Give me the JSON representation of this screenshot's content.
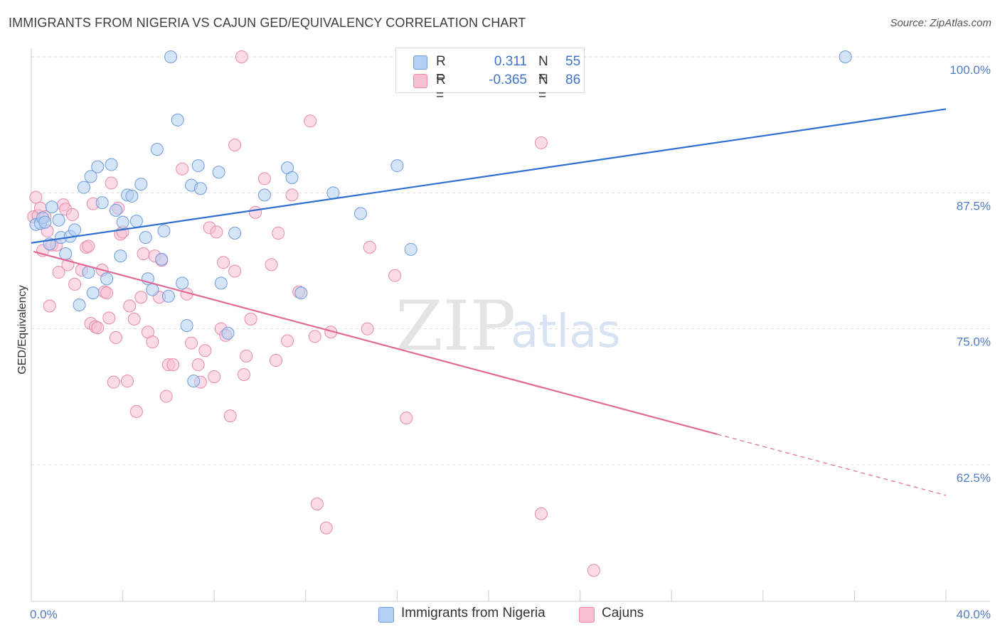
{
  "header": {
    "title": "IMMIGRANTS FROM NIGERIA VS CAJUN GED/EQUIVALENCY CORRELATION CHART",
    "source": "Source: ZipAtlas.com"
  },
  "legend": {
    "series1": {
      "r_label": "R =",
      "r_value": "0.311",
      "n_label": "N =",
      "n_value": "55"
    },
    "series2": {
      "r_label": "R =",
      "r_value": "-0.365",
      "n_label": "N =",
      "n_value": "86"
    }
  },
  "bottom_legend": {
    "series1": "Immigrants from Nigeria",
    "series2": "Cajuns"
  },
  "watermark": {
    "zip": "ZIP",
    "atlas": "atlas"
  },
  "colors": {
    "blue_fill": "#b3cff2",
    "blue_stroke": "#6e9bdc",
    "blue_line": "#2f6fcf",
    "pink_fill": "#f7c0d2",
    "pink_stroke": "#e889a9",
    "pink_line": "#e06a95"
  },
  "chart_data": {
    "type": "scatter",
    "title": "IMMIGRANTS FROM NIGERIA VS CAJUN GED/EQUIVALENCY CORRELATION CHART",
    "xlabel": "",
    "ylabel": "GED/Equivalency",
    "xlim": [
      0,
      40
    ],
    "ylim": [
      52,
      102
    ],
    "x_tick_labels": [
      {
        "value": 0,
        "label": "0.0%"
      },
      {
        "value": 40,
        "label": "40.0%"
      }
    ],
    "y_tick_labels": [
      {
        "value": 100,
        "label": "100.0%"
      },
      {
        "value": 87.5,
        "label": "87.5%"
      },
      {
        "value": 75,
        "label": "75.0%"
      },
      {
        "value": 62.5,
        "label": "62.5%"
      }
    ],
    "grid": true,
    "legend_position": "top-center",
    "series": [
      {
        "name": "Immigrants from Nigeria",
        "color": "#6e9bdc",
        "trend": {
          "x": [
            0,
            40
          ],
          "y": [
            82.9,
            95.2
          ],
          "dashed_from": null
        },
        "points": [
          [
            0.2,
            84.6
          ],
          [
            0.4,
            84.7
          ],
          [
            0.5,
            85.2
          ],
          [
            0.6,
            84.8
          ],
          [
            0.8,
            82.8
          ],
          [
            0.9,
            86.2
          ],
          [
            1.2,
            85.0
          ],
          [
            1.3,
            83.4
          ],
          [
            1.5,
            81.9
          ],
          [
            1.7,
            83.5
          ],
          [
            1.9,
            84.1
          ],
          [
            2.1,
            77.2
          ],
          [
            2.3,
            88.0
          ],
          [
            2.5,
            80.2
          ],
          [
            2.6,
            89.0
          ],
          [
            2.7,
            78.3
          ],
          [
            2.9,
            89.9
          ],
          [
            3.1,
            86.6
          ],
          [
            3.3,
            79.6
          ],
          [
            3.5,
            90.1
          ],
          [
            3.7,
            85.9
          ],
          [
            3.9,
            81.7
          ],
          [
            4.0,
            84.8
          ],
          [
            4.2,
            87.3
          ],
          [
            4.4,
            87.2
          ],
          [
            4.6,
            84.9
          ],
          [
            4.8,
            88.3
          ],
          [
            5.0,
            83.4
          ],
          [
            5.1,
            79.6
          ],
          [
            5.3,
            78.6
          ],
          [
            5.5,
            91.5
          ],
          [
            5.7,
            81.4
          ],
          [
            5.8,
            84.0
          ],
          [
            6.0,
            78.0
          ],
          [
            6.1,
            100.0
          ],
          [
            6.4,
            94.2
          ],
          [
            6.6,
            79.2
          ],
          [
            6.8,
            75.3
          ],
          [
            7.0,
            88.2
          ],
          [
            7.1,
            70.2
          ],
          [
            7.3,
            90.0
          ],
          [
            7.4,
            87.9
          ],
          [
            8.2,
            89.4
          ],
          [
            8.3,
            79.2
          ],
          [
            8.6,
            74.6
          ],
          [
            8.9,
            83.8
          ],
          [
            10.2,
            87.3
          ],
          [
            11.2,
            89.8
          ],
          [
            11.4,
            88.9
          ],
          [
            11.8,
            78.3
          ],
          [
            13.2,
            87.5
          ],
          [
            14.4,
            85.6
          ],
          [
            16.0,
            90.0
          ],
          [
            16.6,
            82.3
          ],
          [
            35.6,
            100.0
          ]
        ]
      },
      {
        "name": "Cajuns",
        "color": "#e889a9",
        "trend": {
          "x": [
            0.1,
            40
          ],
          "y": [
            82.1,
            59.7
          ],
          "dashed_from": 30.0
        },
        "points": [
          [
            0.1,
            85.3
          ],
          [
            0.2,
            87.1
          ],
          [
            0.3,
            85.4
          ],
          [
            0.4,
            86.1
          ],
          [
            0.5,
            82.2
          ],
          [
            0.6,
            85.3
          ],
          [
            0.7,
            84.0
          ],
          [
            0.8,
            77.1
          ],
          [
            0.9,
            82.7
          ],
          [
            1.1,
            82.7
          ],
          [
            1.2,
            80.2
          ],
          [
            1.4,
            86.4
          ],
          [
            1.5,
            86.0
          ],
          [
            1.6,
            80.9
          ],
          [
            1.8,
            85.5
          ],
          [
            1.9,
            79.1
          ],
          [
            2.2,
            80.4
          ],
          [
            2.4,
            82.5
          ],
          [
            2.5,
            82.6
          ],
          [
            2.6,
            75.5
          ],
          [
            2.7,
            86.5
          ],
          [
            2.8,
            75.2
          ],
          [
            2.9,
            75.1
          ],
          [
            3.1,
            80.4
          ],
          [
            3.2,
            78.4
          ],
          [
            3.3,
            78.3
          ],
          [
            3.4,
            76.0
          ],
          [
            3.5,
            88.4
          ],
          [
            3.6,
            70.1
          ],
          [
            3.7,
            74.2
          ],
          [
            3.8,
            86.1
          ],
          [
            3.9,
            83.7
          ],
          [
            4.0,
            83.9
          ],
          [
            4.2,
            70.2
          ],
          [
            4.3,
            77.1
          ],
          [
            4.5,
            75.9
          ],
          [
            4.6,
            67.4
          ],
          [
            4.8,
            77.9
          ],
          [
            4.9,
            81.9
          ],
          [
            5.1,
            74.7
          ],
          [
            5.3,
            73.8
          ],
          [
            5.4,
            81.7
          ],
          [
            5.6,
            77.9
          ],
          [
            5.7,
            81.3
          ],
          [
            5.9,
            68.8
          ],
          [
            6.0,
            71.7
          ],
          [
            6.2,
            71.7
          ],
          [
            6.6,
            89.7
          ],
          [
            6.8,
            78.2
          ],
          [
            7.0,
            73.7
          ],
          [
            7.3,
            71.7
          ],
          [
            7.4,
            70.1
          ],
          [
            7.6,
            73.0
          ],
          [
            7.8,
            84.3
          ],
          [
            8.0,
            70.6
          ],
          [
            8.1,
            83.9
          ],
          [
            8.3,
            75.0
          ],
          [
            8.4,
            81.1
          ],
          [
            8.5,
            74.4
          ],
          [
            8.7,
            67.0
          ],
          [
            8.9,
            80.3
          ],
          [
            8.9,
            91.9
          ],
          [
            9.2,
            100.0
          ],
          [
            9.3,
            70.8
          ],
          [
            9.4,
            72.5
          ],
          [
            9.6,
            75.9
          ],
          [
            9.8,
            85.7
          ],
          [
            10.2,
            88.8
          ],
          [
            10.5,
            80.9
          ],
          [
            10.7,
            72.1
          ],
          [
            10.8,
            83.8
          ],
          [
            11.2,
            73.9
          ],
          [
            11.4,
            87.3
          ],
          [
            11.7,
            78.4
          ],
          [
            12.2,
            94.1
          ],
          [
            12.4,
            74.3
          ],
          [
            12.5,
            58.9
          ],
          [
            12.9,
            56.7
          ],
          [
            13.1,
            74.7
          ],
          [
            14.7,
            75.0
          ],
          [
            14.8,
            82.5
          ],
          [
            15.9,
            79.9
          ],
          [
            16.4,
            66.8
          ],
          [
            22.3,
            92.1
          ],
          [
            22.3,
            58.0
          ],
          [
            24.6,
            52.8
          ]
        ]
      }
    ]
  }
}
